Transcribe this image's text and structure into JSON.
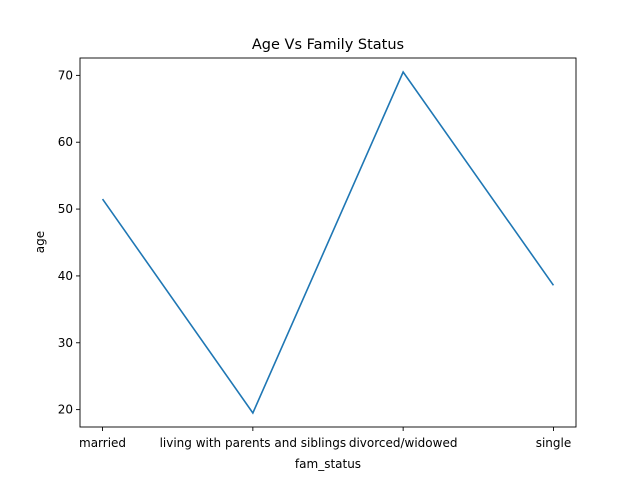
{
  "chart_data": {
    "type": "line",
    "title": "Age Vs Family Status",
    "xlabel": "fam_status",
    "ylabel": "age",
    "categories": [
      "married",
      "living with parents and siblings",
      "divorced/widowed",
      "single"
    ],
    "series": [
      {
        "values": [
          51.5,
          19.5,
          70.5,
          38.6
        ]
      }
    ],
    "ylim": [
      17.4,
      72.6
    ],
    "yticks": [
      20,
      30,
      40,
      50,
      60,
      70
    ],
    "grid": false,
    "legend": "none",
    "colors": {
      "line": "#1f77b4",
      "axes": "#000000"
    }
  }
}
